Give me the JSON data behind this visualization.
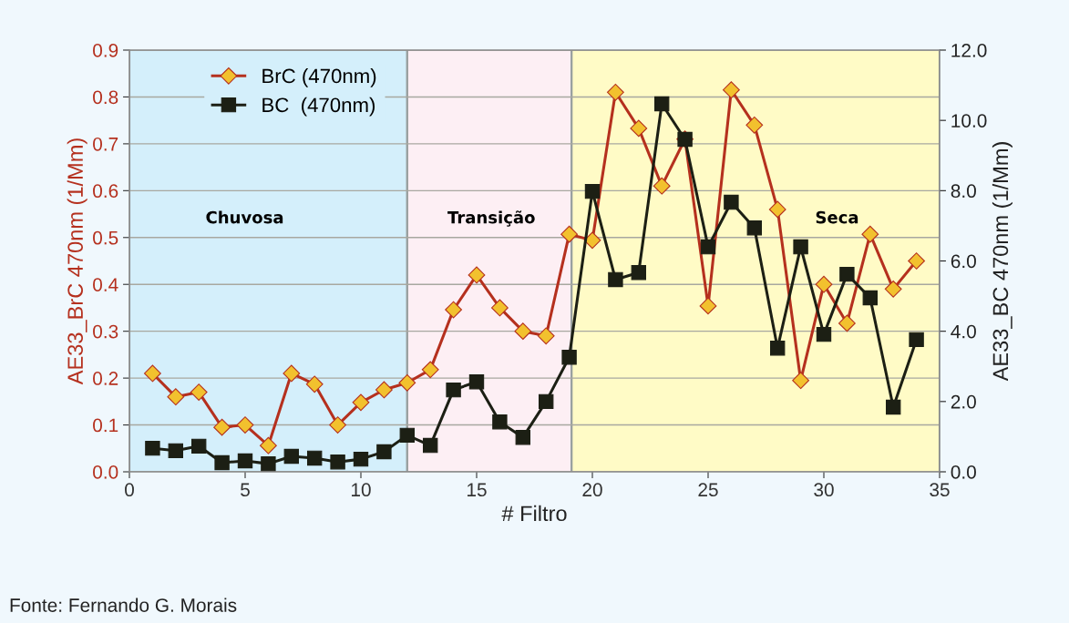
{
  "chart_data": {
    "type": "line",
    "xlabel": "# Filtro",
    "ylabel": "AE33_BrC 470nm (1/Mm)",
    "y2label": "AE33_BC 470nm (1/Mm)",
    "x": [
      1,
      2,
      3,
      4,
      5,
      6,
      7,
      8,
      9,
      10,
      11,
      12,
      13,
      14,
      15,
      16,
      17,
      18,
      19,
      20,
      21,
      22,
      23,
      24,
      25,
      26,
      27,
      28,
      29,
      30,
      31,
      32,
      33,
      34
    ],
    "series": [
      {
        "name": "BrC (470nm)",
        "color": "#b5301e",
        "marker": "diamond",
        "values": [
          0.21,
          0.16,
          0.17,
          0.095,
          0.1,
          0.056,
          0.21,
          0.187,
          0.1,
          0.148,
          0.175,
          0.19,
          0.218,
          0.346,
          0.42,
          0.35,
          0.3,
          0.29,
          0.507,
          0.494,
          0.81,
          0.733,
          0.61,
          0.71,
          0.354,
          0.815,
          0.74,
          0.56,
          0.195,
          0.4,
          0.317,
          0.507,
          0.39,
          0.45
        ]
      },
      {
        "name": "BC  (470nm)",
        "color": "#1c1f14",
        "marker": "square",
        "axis": "y2",
        "values": [
          0.67,
          0.6,
          0.73,
          0.26,
          0.31,
          0.23,
          0.44,
          0.39,
          0.28,
          0.36,
          0.57,
          1.04,
          0.75,
          2.33,
          2.56,
          1.42,
          0.98,
          2.0,
          3.26,
          7.98,
          5.47,
          5.67,
          10.47,
          9.46,
          6.4,
          7.67,
          6.94,
          3.52,
          6.4,
          3.91,
          5.62,
          4.95,
          1.84,
          3.76
        ]
      }
    ],
    "xlim": [
      0,
      35
    ],
    "xticks": [
      0,
      5,
      10,
      15,
      20,
      25,
      30,
      35
    ],
    "ylim": [
      0,
      0.9
    ],
    "yticks": [
      {
        "value": 0,
        "label": "0.0"
      },
      {
        "value": 0.1,
        "label": "0.1"
      },
      {
        "value": 0.2,
        "label": "0.2"
      },
      {
        "value": 0.3,
        "label": "0.3"
      },
      {
        "value": 0.4,
        "label": "0.4"
      },
      {
        "value": 0.5,
        "label": "0.5"
      },
      {
        "value": 0.6,
        "label": "0.6"
      },
      {
        "value": 0.7,
        "label": "0.7"
      },
      {
        "value": 0.8,
        "label": "0.8"
      },
      {
        "value": 0.9,
        "label": "0.9"
      }
    ],
    "y2lim": [
      0,
      12
    ],
    "y2ticks": [
      {
        "value": 0,
        "label": "0.0"
      },
      {
        "value": 2,
        "label": "2.0"
      },
      {
        "value": 4,
        "label": "4.0"
      },
      {
        "value": 6,
        "label": "6.0"
      },
      {
        "value": 8,
        "label": "8.0"
      },
      {
        "value": 10,
        "label": "10.0"
      },
      {
        "value": 12,
        "label": "12.0"
      }
    ],
    "bands": [
      {
        "axis": "x",
        "from": 0,
        "to": 12,
        "label": "Chuvosa",
        "color": "#d4effb"
      },
      {
        "axis": "x",
        "from": 12,
        "to": 19.1,
        "label": "Transição",
        "color": "#fdeff4"
      },
      {
        "axis": "x",
        "from": 19.1,
        "to": 35,
        "label": "Seca",
        "color": "#fffbc6"
      }
    ],
    "grid": "y",
    "legend": "top left",
    "annotations": [
      "Fonte: Fernando G. Morais"
    ]
  }
}
